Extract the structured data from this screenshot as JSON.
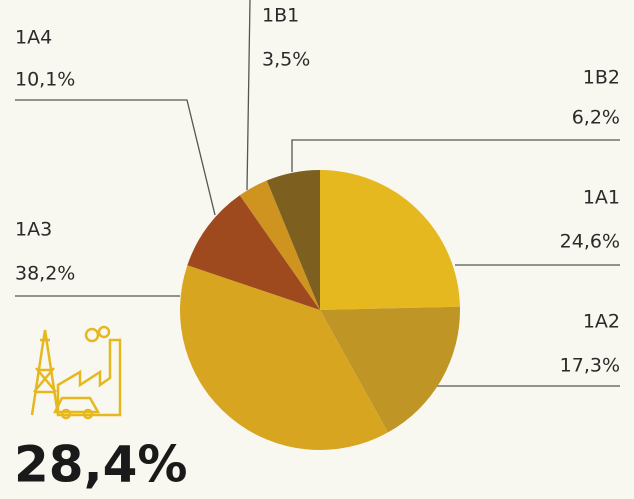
{
  "chart_data": {
    "type": "pie",
    "categories": [
      "1A1",
      "1A2",
      "1A3",
      "1A4",
      "1B1",
      "1B2"
    ],
    "values": [
      24.6,
      17.3,
      38.2,
      10.1,
      3.5,
      6.2
    ],
    "value_labels": [
      "24,6%",
      "17,3%",
      "38,2%",
      "10,1%",
      "3,5%",
      "6,2%"
    ],
    "colors": [
      "#e6b820",
      "#bf9526",
      "#d8a520",
      "#9e4a1e",
      "#cf9320",
      "#7d6020"
    ],
    "annotation": "28,4%"
  }
}
